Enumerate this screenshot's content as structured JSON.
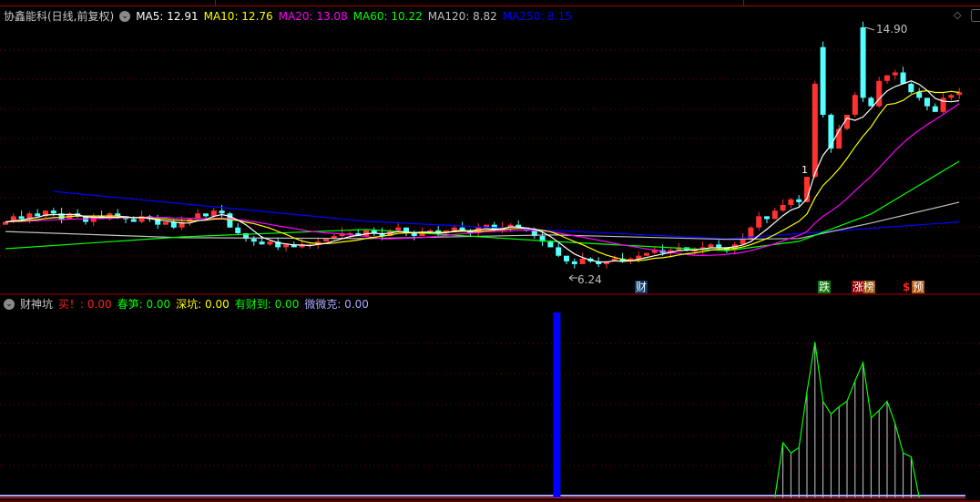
{
  "header": {
    "stock": "协鑫能科(日线,前复权)",
    "ma5": "MA5: 12.91",
    "ma10": "MA10: 12.76",
    "ma20": "MA20: 13.08",
    "ma60": "MA60: 10.22",
    "ma120": "MA120: 8.82",
    "ma250": "MA250: 8.15"
  },
  "sub_header": {
    "indicator": "财神坑",
    "buy": "买！: 0.00",
    "chunsun": "春笋: 0.00",
    "shenkeng": "深坑: 0.00",
    "youcaidao": "有财到: 0.00",
    "weiweike": "微微克: 0.00"
  },
  "badges": {
    "cai": "财",
    "die": "跌",
    "zhangbang": "涨榜",
    "dollar": "$",
    "yu": "预"
  },
  "colors": {
    "up": "#ff3232",
    "down": "#54ffff",
    "ma5": "#ffffff",
    "ma10": "#ffff00",
    "ma20": "#ff00ff",
    "ma60": "#00ff00",
    "ma120": "#c0c0c0",
    "ma250": "#0000ff",
    "grid": "#800000",
    "sub_green": "#00ff00",
    "sub_blue": "#0000ff"
  },
  "chart_data": [
    {
      "type": "candlestick",
      "title": "协鑫能科(日线,前复权)",
      "annotations": {
        "high": "14.90",
        "low": "6.24",
        "marker": "1"
      },
      "closes": [
        8.0,
        8.2,
        8.1,
        8.3,
        8.2,
        8.4,
        8.3,
        8.1,
        8.3,
        8.2,
        8.0,
        8.2,
        8.1,
        8.3,
        8.2,
        8.1,
        8.0,
        8.2,
        8.1,
        7.9,
        8.0,
        7.8,
        8.0,
        8.1,
        8.3,
        8.2,
        8.4,
        8.3,
        7.8,
        7.6,
        7.4,
        7.3,
        7.2,
        7.3,
        7.1,
        7.2,
        7.1,
        7.2,
        7.2,
        7.3,
        7.4,
        7.5,
        7.6,
        7.6,
        7.5,
        7.7,
        7.6,
        7.5,
        7.7,
        7.8,
        7.6,
        7.5,
        7.6,
        7.7,
        7.6,
        7.7,
        7.8,
        7.7,
        7.6,
        7.8,
        7.9,
        7.7,
        7.8,
        7.9,
        7.8,
        7.7,
        7.5,
        7.3,
        7.1,
        6.8,
        6.6,
        6.5,
        6.7,
        6.6,
        6.5,
        6.6,
        6.7,
        6.6,
        6.7,
        6.8,
        6.9,
        7.0,
        6.9,
        7.0,
        7.1,
        7.0,
        7.0,
        7.1,
        7.2,
        7.1,
        7.0,
        7.2,
        7.4,
        7.8,
        8.2,
        8.1,
        8.4,
        8.6,
        8.8,
        8.7,
        9.6,
        12.9,
        11.8,
        10.6,
        11.3,
        11.8,
        12.5,
        12.4,
        12.1,
        13.0,
        13.2,
        13.3,
        12.9,
        12.6,
        12.4,
        12.1,
        11.9,
        12.4,
        12.5,
        12.6
      ],
      "open_overrides": {
        "102": 14.2,
        "107": 14.9
      },
      "ma_long": {
        "ma60": [
          [
            0,
            7.05
          ],
          [
            22,
            7.47
          ],
          [
            45,
            7.73
          ],
          [
            68,
            7.31
          ],
          [
            90,
            6.98
          ],
          [
            99,
            7.31
          ],
          [
            108,
            8.28
          ],
          [
            119,
            10.15
          ]
        ],
        "ma120": [
          [
            0,
            7.66
          ],
          [
            22,
            7.44
          ],
          [
            45,
            7.41
          ],
          [
            68,
            7.54
          ],
          [
            90,
            7.38
          ],
          [
            99,
            7.41
          ],
          [
            108,
            7.96
          ],
          [
            119,
            8.7
          ]
        ],
        "ma250": [
          [
            6,
            9.08
          ],
          [
            45,
            8.02
          ],
          [
            90,
            7.4
          ],
          [
            119,
            8.0
          ]
        ]
      }
    },
    {
      "type": "bar",
      "title": "财神坑",
      "blue_bar": {
        "index": 68,
        "value": 100
      },
      "green_area": [
        [
          96,
          0
        ],
        [
          97,
          29.6
        ],
        [
          98,
          24
        ],
        [
          99,
          27
        ],
        [
          100,
          57
        ],
        [
          101,
          84
        ],
        [
          102,
          52
        ],
        [
          103,
          45
        ],
        [
          104,
          49
        ],
        [
          105,
          52
        ],
        [
          106,
          63
        ],
        [
          107,
          73
        ],
        [
          108,
          43
        ],
        [
          109,
          47
        ],
        [
          110,
          52
        ],
        [
          111,
          40
        ],
        [
          112,
          24
        ],
        [
          113,
          22
        ],
        [
          114,
          0
        ]
      ]
    }
  ]
}
